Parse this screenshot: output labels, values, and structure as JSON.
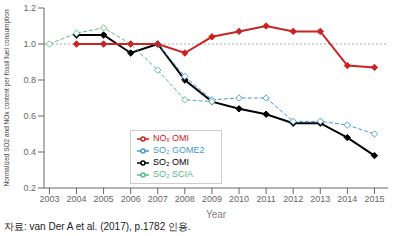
{
  "chart_data": {
    "type": "line",
    "x_label": "Year",
    "y_label": "Normalized SO2 and NOx content per fossil fuel consumption",
    "caption": "자료: van Der A et al. (2017), p.1782 인용.",
    "xlim": [
      2002.8,
      2015.5
    ],
    "xticks": [
      2003,
      2004,
      2005,
      2006,
      2007,
      2008,
      2009,
      2010,
      2011,
      2012,
      2013,
      2014,
      2015
    ],
    "ylim": [
      0.2,
      1.2
    ],
    "yticks": [
      0.2,
      0.4,
      0.6,
      0.8,
      {
        "value": 1.0,
        "label": "1.0"
      },
      1.2
    ],
    "grid": false,
    "legend": "lower left",
    "reference_lines": [
      1.0
    ],
    "series": [
      {
        "name": "SO₂ OMI",
        "color": "#000000",
        "line_style": "solid",
        "marker": "diamond",
        "x": [
          2004,
          2005,
          2006,
          2007,
          2008,
          2009,
          2010,
          2011,
          2012,
          2013,
          2014,
          2015
        ],
        "values": [
          1.05,
          1.05,
          0.95,
          1.0,
          0.8,
          0.68,
          0.64,
          0.61,
          0.56,
          0.56,
          0.48,
          0.38
        ]
      },
      {
        "name": "SO₂ GOME2",
        "color": "#4499cc",
        "line_style": "dashed",
        "marker": "open-diamond",
        "x": [
          2007,
          2008,
          2009,
          2010,
          2011,
          2012,
          2013,
          2014,
          2015
        ],
        "values": [
          1.0,
          0.82,
          0.69,
          0.7,
          0.7,
          0.57,
          0.57,
          0.55,
          0.5
        ]
      },
      {
        "name": "SO₂ SCIA",
        "color": "#55bb88",
        "line_style": "dashed",
        "marker": "open-diamond",
        "x": [
          2003,
          2004,
          2005,
          2006,
          2007,
          2008,
          2009
        ],
        "values": [
          1.0,
          1.06,
          1.09,
          1.0,
          0.855,
          0.69,
          0.68
        ]
      },
      {
        "name": "NOₓ OMI",
        "color": "#cc2222",
        "line_style": "solid",
        "marker": "diamond",
        "x": [
          2004,
          2005,
          2006,
          2007,
          2008,
          2009,
          2010,
          2011,
          2012,
          2013,
          2014,
          2015
        ],
        "values": [
          1.0,
          1.0,
          1.0,
          1.0,
          0.95,
          1.04,
          1.07,
          1.1,
          1.07,
          1.07,
          0.88,
          0.87
        ]
      }
    ]
  }
}
